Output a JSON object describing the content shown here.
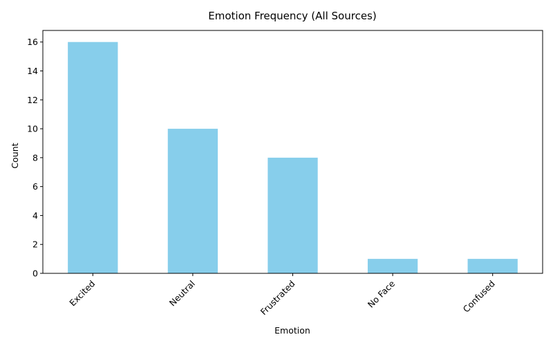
{
  "chart_data": {
    "type": "bar",
    "title": "Emotion Frequency (All Sources)",
    "xlabel": "Emotion",
    "ylabel": "Count",
    "categories": [
      "Excited",
      "Neutral",
      "Frustrated",
      "No Face",
      "Confused"
    ],
    "values": [
      16,
      10,
      8,
      1,
      1
    ],
    "ylim": [
      0,
      16.8
    ],
    "yticks": [
      0,
      2,
      4,
      6,
      8,
      10,
      12,
      14,
      16
    ],
    "x_tick_rotation": 45,
    "grid": false,
    "legend": "none",
    "bar_color": "#87CEEB",
    "axis_color": "#000000"
  }
}
